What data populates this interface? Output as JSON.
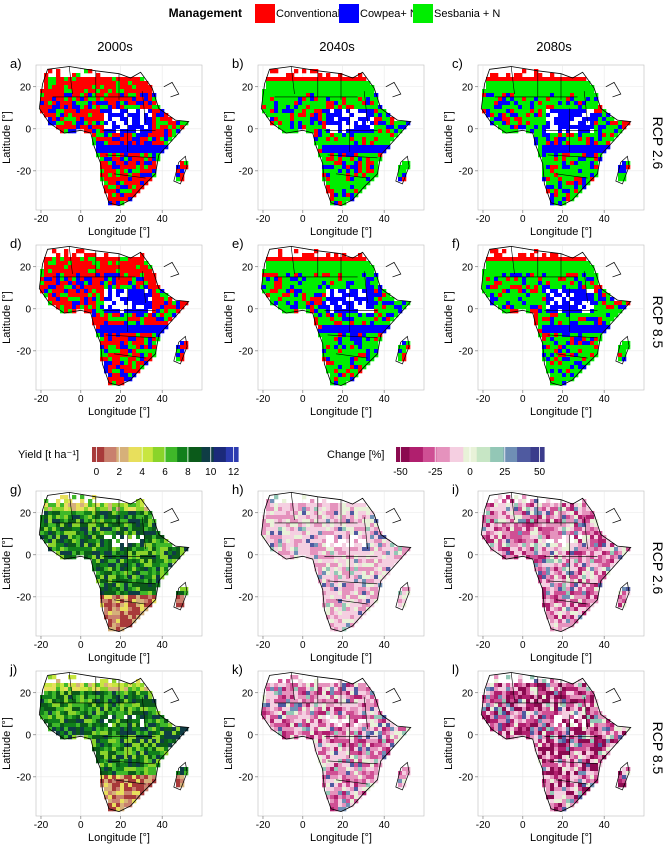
{
  "legend": {
    "title": "Management",
    "items": [
      {
        "label": "Conventional",
        "color": "#ff0000"
      },
      {
        "label": "Cowpea+ N",
        "color": "#0000ff"
      },
      {
        "label": "Sesbania + N",
        "color": "#00ee00"
      }
    ]
  },
  "columns": [
    "2000s",
    "2040s",
    "2080s"
  ],
  "rows": [
    "RCP 2.6",
    "RCP 8.5"
  ],
  "axes": {
    "xlabel": "Longitude [°]",
    "ylabel": "Latitude [°]",
    "xticks": [
      "-20",
      "0",
      "20",
      "40"
    ],
    "yticks": [
      "20",
      "0",
      "-20"
    ]
  },
  "panels_top": [
    "a)",
    "b)",
    "c)",
    "d)",
    "e)",
    "f)"
  ],
  "panels_bottom": [
    "g)",
    "h)",
    "i)",
    "j)",
    "k)",
    "l)"
  ],
  "yield_scale": {
    "label": "Yield [t ha⁻¹]",
    "ticks": [
      "0",
      "2",
      "4",
      "6",
      "8",
      "10",
      "12"
    ],
    "colors": [
      "#a83a3a",
      "#c9806e",
      "#d6b07a",
      "#e8df5c",
      "#c8e640",
      "#8ad42a",
      "#3fb829",
      "#11801c",
      "#0b5a1a",
      "#0f3d45",
      "#1b2a7a",
      "#2c3bb0"
    ]
  },
  "change_scale": {
    "label": "Change [%]",
    "ticks": [
      "-50",
      "-25",
      "0",
      "25",
      "50"
    ],
    "colors": [
      "#8b0a50",
      "#b01f6e",
      "#cf4f94",
      "#e592bd",
      "#f5cfe1",
      "#e8f2d8",
      "#c7e6c5",
      "#93c7b6",
      "#6f8fb5",
      "#4f5aa0",
      "#3b3c8c"
    ]
  },
  "chart_data": [
    {
      "type": "heatmap",
      "panel": "a)",
      "variable": "Management",
      "scenario": "RCP 2.6",
      "period": "2000s",
      "dominant": "Conventional",
      "categories": [
        "Conventional",
        "Cowpea+ N",
        "Sesbania + N"
      ],
      "xlim": [
        -25,
        60
      ],
      "ylim": [
        -38,
        30
      ]
    },
    {
      "type": "heatmap",
      "panel": "b)",
      "variable": "Management",
      "scenario": "RCP 2.6",
      "period": "2040s",
      "dominant": "Sesbania + N",
      "categories": [
        "Conventional",
        "Cowpea+ N",
        "Sesbania + N"
      ],
      "xlim": [
        -25,
        60
      ],
      "ylim": [
        -38,
        30
      ]
    },
    {
      "type": "heatmap",
      "panel": "c)",
      "variable": "Management",
      "scenario": "RCP 2.6",
      "period": "2080s",
      "dominant": "Sesbania + N",
      "categories": [
        "Conventional",
        "Cowpea+ N",
        "Sesbania + N"
      ],
      "xlim": [
        -25,
        60
      ],
      "ylim": [
        -38,
        30
      ]
    },
    {
      "type": "heatmap",
      "panel": "d)",
      "variable": "Management",
      "scenario": "RCP 8.5",
      "period": "2000s",
      "dominant": "Conventional",
      "categories": [
        "Conventional",
        "Cowpea+ N",
        "Sesbania + N"
      ],
      "xlim": [
        -25,
        60
      ],
      "ylim": [
        -38,
        30
      ]
    },
    {
      "type": "heatmap",
      "panel": "e)",
      "variable": "Management",
      "scenario": "RCP 8.5",
      "period": "2040s",
      "dominant": "Sesbania + N",
      "categories": [
        "Conventional",
        "Cowpea+ N",
        "Sesbania + N"
      ],
      "xlim": [
        -25,
        60
      ],
      "ylim": [
        -38,
        30
      ]
    },
    {
      "type": "heatmap",
      "panel": "f)",
      "variable": "Management",
      "scenario": "RCP 8.5",
      "period": "2080s",
      "dominant": "Sesbania + N",
      "categories": [
        "Conventional",
        "Cowpea+ N",
        "Sesbania + N"
      ],
      "xlim": [
        -25,
        60
      ],
      "ylim": [
        -38,
        30
      ]
    },
    {
      "type": "heatmap",
      "panel": "g)",
      "variable": "Yield [t ha-1]",
      "scenario": "RCP 2.6",
      "period": "2000s",
      "range": [
        0,
        12
      ],
      "xlim": [
        -25,
        60
      ],
      "ylim": [
        -38,
        30
      ]
    },
    {
      "type": "heatmap",
      "panel": "h)",
      "variable": "Change [%]",
      "scenario": "RCP 2.6",
      "period": "2040s",
      "range": [
        -50,
        50
      ],
      "xlim": [
        -25,
        60
      ],
      "ylim": [
        -38,
        30
      ]
    },
    {
      "type": "heatmap",
      "panel": "i)",
      "variable": "Change [%]",
      "scenario": "RCP 2.6",
      "period": "2080s",
      "range": [
        -50,
        50
      ],
      "xlim": [
        -25,
        60
      ],
      "ylim": [
        -38,
        30
      ]
    },
    {
      "type": "heatmap",
      "panel": "j)",
      "variable": "Yield [t ha-1]",
      "scenario": "RCP 8.5",
      "period": "2000s",
      "range": [
        0,
        12
      ],
      "xlim": [
        -25,
        60
      ],
      "ylim": [
        -38,
        30
      ]
    },
    {
      "type": "heatmap",
      "panel": "k)",
      "variable": "Change [%]",
      "scenario": "RCP 8.5",
      "period": "2040s",
      "range": [
        -50,
        50
      ],
      "xlim": [
        -25,
        60
      ],
      "ylim": [
        -38,
        30
      ]
    },
    {
      "type": "heatmap",
      "panel": "l)",
      "variable": "Change [%]",
      "scenario": "RCP 8.5",
      "period": "2080s",
      "range": [
        -50,
        50
      ],
      "xlim": [
        -25,
        60
      ],
      "ylim": [
        -38,
        30
      ]
    }
  ]
}
